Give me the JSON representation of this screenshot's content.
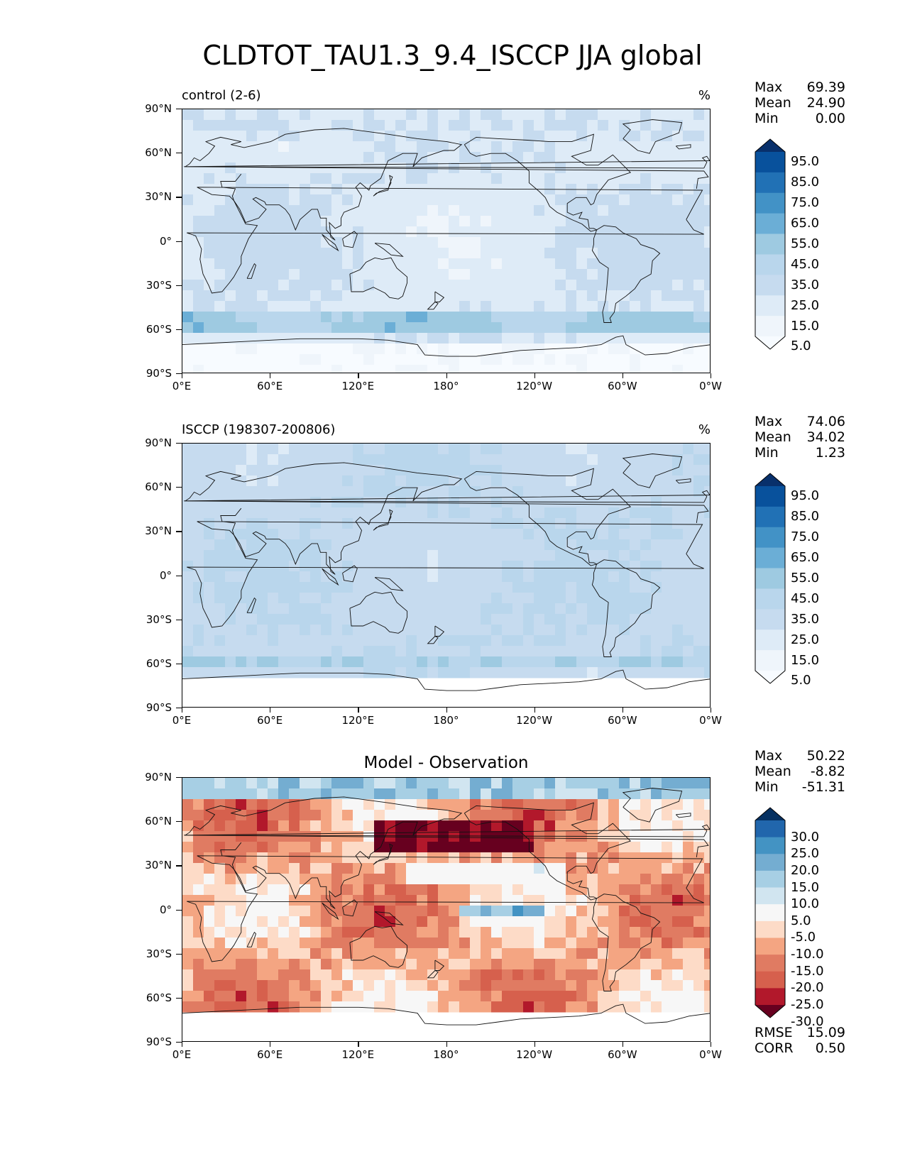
{
  "title": "CLDTOT_TAU1.3_9.4_ISCCP JJA global",
  "lat_labels": [
    "90°N",
    "60°N",
    "30°N",
    "0°",
    "30°S",
    "60°S",
    "90°S"
  ],
  "lon_labels": [
    "0°E",
    "60°E",
    "120°E",
    "180°",
    "120°W",
    "60°W",
    "0°W"
  ],
  "panels": [
    {
      "left_title": "control (2-6)",
      "center_title": "",
      "units": "%",
      "stats": [
        {
          "label": "Max",
          "value": "69.39"
        },
        {
          "label": "Mean",
          "value": "24.90"
        },
        {
          "label": "Min",
          "value": "0.00"
        }
      ],
      "colorbar_labels": [
        "95.0",
        "85.0",
        "75.0",
        "65.0",
        "55.0",
        "45.0",
        "35.0",
        "25.0",
        "15.0",
        "5.0"
      ],
      "colorbar_colors": [
        "#08306b",
        "#08519c",
        "#2171b5",
        "#4292c6",
        "#6baed6",
        "#9ecae1",
        "#b9d6ec",
        "#c6dbef",
        "#deebf7",
        "#eff5fb",
        "#f7fbff"
      ],
      "metrics": []
    },
    {
      "left_title": "ISCCP (198307-200806)",
      "center_title": "",
      "units": "%",
      "stats": [
        {
          "label": "Max",
          "value": "74.06"
        },
        {
          "label": "Mean",
          "value": "34.02"
        },
        {
          "label": "Min",
          "value": "1.23"
        }
      ],
      "colorbar_labels": [
        "95.0",
        "85.0",
        "75.0",
        "65.0",
        "55.0",
        "45.0",
        "35.0",
        "25.0",
        "15.0",
        "5.0"
      ],
      "colorbar_colors": [
        "#08306b",
        "#08519c",
        "#2171b5",
        "#4292c6",
        "#6baed6",
        "#9ecae1",
        "#b9d6ec",
        "#c6dbef",
        "#deebf7",
        "#eff5fb",
        "#f7fbff"
      ],
      "metrics": []
    },
    {
      "left_title": "",
      "center_title": "Model - Observation",
      "units": "",
      "stats": [
        {
          "label": "Max",
          "value": "50.22"
        },
        {
          "label": "Mean",
          "value": "-8.82"
        },
        {
          "label": "Min",
          "value": "-51.31"
        }
      ],
      "colorbar_labels": [
        "30.0",
        "25.0",
        "20.0",
        "15.0",
        "10.0",
        "5.0",
        "-5.0",
        "-10.0",
        "-15.0",
        "-20.0",
        "-25.0",
        "-30.0"
      ],
      "colorbar_colors": [
        "#053061",
        "#2166ac",
        "#4393c3",
        "#74add1",
        "#a7cfe4",
        "#d1e5f0",
        "#f7f7f7",
        "#fddbc7",
        "#f4a582",
        "#e07b62",
        "#d6604d",
        "#b2182b",
        "#67001f"
      ],
      "metrics": [
        {
          "label": "RMSE",
          "value": "15.09"
        },
        {
          "label": "CORR",
          "value": "0.50"
        }
      ]
    }
  ]
}
